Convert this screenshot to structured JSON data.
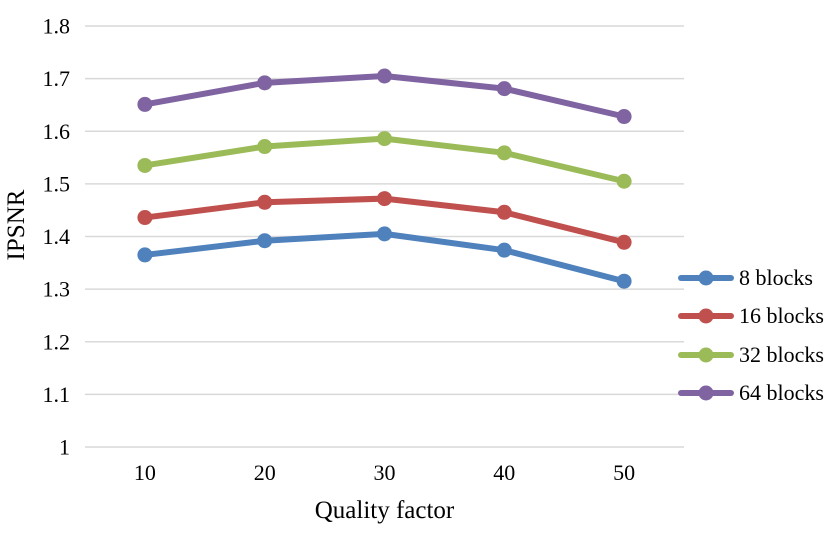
{
  "chart_data": {
    "type": "line",
    "title": "",
    "xlabel": "Quality factor",
    "ylabel": "IPSNR",
    "x": [
      "10",
      "20",
      "30",
      "40",
      "50"
    ],
    "series": [
      {
        "name": "8 blocks",
        "color": "#4F81BD",
        "values": [
          1.365,
          1.392,
          1.405,
          1.374,
          1.315
        ]
      },
      {
        "name": "16 blocks",
        "color": "#C0504D",
        "values": [
          1.436,
          1.465,
          1.472,
          1.446,
          1.389
        ]
      },
      {
        "name": "32 blocks",
        "color": "#9BBB59",
        "values": [
          1.535,
          1.571,
          1.586,
          1.559,
          1.505
        ]
      },
      {
        "name": "64 blocks",
        "color": "#8064A2",
        "values": [
          1.651,
          1.692,
          1.705,
          1.681,
          1.628
        ]
      }
    ],
    "ylim": [
      1.0,
      1.8
    ],
    "yticks": [
      "1",
      "1.1",
      "1.2",
      "1.3",
      "1.4",
      "1.5",
      "1.6",
      "1.7",
      "1.8"
    ],
    "grid": true,
    "gridline_color": "#D9D9D9",
    "legend_position": "right"
  }
}
